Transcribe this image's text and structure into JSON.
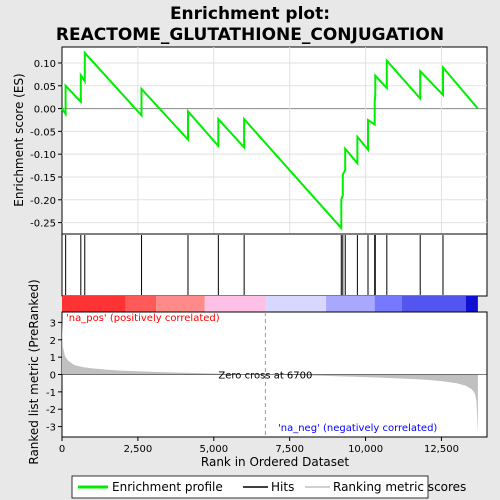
{
  "title_line1": "Enrichment plot:",
  "title_line2": "REACTOME_GLUTATHIONE_CONJUGATION",
  "colors": {
    "background": "#e8e8e8",
    "panel": "#ffffff",
    "es_line": "#00ee00",
    "hit": "#000000",
    "metric_fill": "#c0c0c0",
    "pos_label": "#ff0000",
    "neg_label": "#0000ff"
  },
  "chart_data": [
    {
      "type": "line",
      "name": "enrichment-profile",
      "ylabel": "Enrichment score (ES)",
      "xlim": [
        0,
        14000
      ],
      "ylim": [
        -0.275,
        0.135
      ],
      "y_ticks": [
        0.1,
        0.05,
        0.0,
        -0.05,
        -0.1,
        -0.15,
        -0.2,
        -0.25
      ],
      "y_tick_labels": [
        "0.10",
        "0.05",
        "0.00",
        "-0.05",
        "-0.10",
        "-0.15",
        "-0.20",
        "-0.25"
      ],
      "grid": true,
      "zero_line": true,
      "x": [
        0,
        120,
        120,
        620,
        620,
        750,
        750,
        2620,
        2620,
        4150,
        4150,
        5150,
        5150,
        6000,
        6000,
        9200,
        9200,
        9250,
        9250,
        9330,
        9330,
        9730,
        9730,
        10080,
        10080,
        10300,
        10300,
        10320,
        10320,
        10700,
        10700,
        11800,
        11800,
        12550,
        12550,
        13700
      ],
      "y": [
        0.0,
        -0.012,
        0.05,
        0.015,
        0.073,
        0.06,
        0.122,
        -0.015,
        0.043,
        -0.068,
        -0.006,
        -0.082,
        -0.023,
        -0.085,
        -0.023,
        -0.262,
        -0.2,
        -0.19,
        -0.145,
        -0.135,
        -0.088,
        -0.12,
        -0.062,
        -0.09,
        -0.025,
        -0.035,
        0.015,
        0.03,
        0.072,
        0.045,
        0.105,
        0.022,
        0.082,
        0.03,
        0.09,
        0.0
      ]
    },
    {
      "type": "hits",
      "name": "hits",
      "x": [
        120,
        620,
        750,
        2620,
        4150,
        5150,
        6000,
        9200,
        9250,
        9330,
        9730,
        10080,
        10300,
        10320,
        10700,
        11800,
        12550
      ]
    },
    {
      "type": "heatmap",
      "name": "ranking-color-bar",
      "segments": [
        {
          "from": 0,
          "to": 2100,
          "color": "#ff3333"
        },
        {
          "from": 2100,
          "to": 3100,
          "color": "#ff5a5a"
        },
        {
          "from": 3100,
          "to": 4700,
          "color": "#ff8a8a"
        },
        {
          "from": 4700,
          "to": 6700,
          "color": "#ffc0e6"
        },
        {
          "from": 6700,
          "to": 8700,
          "color": "#d8d8ff"
        },
        {
          "from": 8700,
          "to": 10300,
          "color": "#a8a8ff"
        },
        {
          "from": 10300,
          "to": 11200,
          "color": "#7878ff"
        },
        {
          "from": 11200,
          "to": 13300,
          "color": "#5454ee"
        },
        {
          "from": 13300,
          "to": 13700,
          "color": "#1010d0"
        }
      ]
    },
    {
      "type": "area",
      "name": "ranked-metric",
      "xlabel": "Rank in Ordered Dataset",
      "ylabel": "Ranked list metric (PreRanked)",
      "xlim": [
        0,
        14000
      ],
      "ylim": [
        -3.6,
        3.6
      ],
      "x_ticks": [
        0,
        2500,
        5000,
        7500,
        10000,
        12500
      ],
      "x_tick_labels": [
        "0",
        "2,500",
        "5,000",
        "7,500",
        "10,000",
        "12,500"
      ],
      "y_ticks": [
        3,
        2,
        1,
        0,
        -1,
        -2,
        -3
      ],
      "y_tick_labels": [
        "3",
        "2",
        "1",
        "0",
        "-1",
        "-2",
        "-3"
      ],
      "x": [
        0,
        30,
        100,
        200,
        400,
        700,
        1000,
        1500,
        2000,
        3000,
        4000,
        5000,
        6000,
        6700,
        7500,
        8500,
        9500,
        10500,
        11500,
        12000,
        12500,
        13000,
        13300,
        13500,
        13600,
        13650,
        13700
      ],
      "y": [
        3.2,
        1.6,
        1.05,
        0.8,
        0.55,
        0.42,
        0.35,
        0.27,
        0.22,
        0.15,
        0.1,
        0.06,
        0.02,
        0.0,
        -0.03,
        -0.07,
        -0.12,
        -0.18,
        -0.26,
        -0.3,
        -0.38,
        -0.5,
        -0.65,
        -0.85,
        -1.1,
        -1.5,
        -3.4
      ],
      "zero_cross_x": 6700,
      "zero_cross_label": "Zero cross at 6700",
      "pos_label": "'na_pos' (positively correlated)",
      "neg_label": "'na_neg' (negatively correlated)"
    }
  ],
  "legend": {
    "enrichment_profile": "Enrichment profile",
    "hits": "Hits",
    "ranking_metric": "Ranking metric scores"
  }
}
